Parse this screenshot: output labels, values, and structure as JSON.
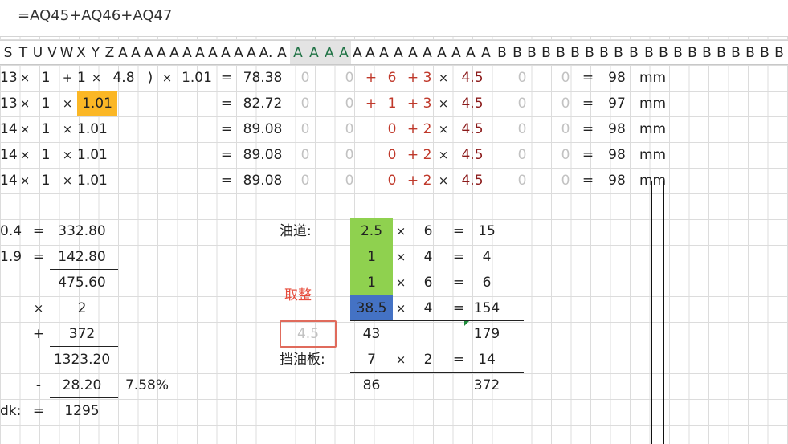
{
  "formula_bar": {
    "text": "=AQ45+AQ46+AQ47"
  },
  "columns": [
    {
      "label": "S",
      "w": 20,
      "sel": false
    },
    {
      "label": "T",
      "w": 18,
      "sel": false
    },
    {
      "label": "U",
      "w": 18,
      "sel": false
    },
    {
      "label": "V",
      "w": 18,
      "sel": false
    },
    {
      "label": "W",
      "w": 18,
      "sel": false
    },
    {
      "label": "X",
      "w": 18,
      "sel": false
    },
    {
      "label": "Y",
      "w": 18,
      "sel": false
    },
    {
      "label": "Z",
      "w": 17,
      "sel": false
    },
    {
      "label": "A",
      "w": 16,
      "sel": false
    },
    {
      "label": "A",
      "w": 16,
      "sel": false
    },
    {
      "label": "A",
      "w": 16,
      "sel": false
    },
    {
      "label": "A",
      "w": 16,
      "sel": false
    },
    {
      "label": "A",
      "w": 16,
      "sel": false
    },
    {
      "label": "A",
      "w": 16,
      "sel": false
    },
    {
      "label": "A",
      "w": 16,
      "sel": false
    },
    {
      "label": "A",
      "w": 16,
      "sel": false
    },
    {
      "label": "A",
      "w": 16,
      "sel": false
    },
    {
      "label": "A",
      "w": 16,
      "sel": false
    },
    {
      "label": "A",
      "w": 16,
      "sel": false
    },
    {
      "label": "A.",
      "w": 20,
      "sel": false
    },
    {
      "label": "A",
      "w": 20,
      "sel": false
    },
    {
      "label": "A",
      "w": 20,
      "sel": true
    },
    {
      "label": "A",
      "w": 20,
      "sel": true
    },
    {
      "label": "A",
      "w": 18,
      "sel": true
    },
    {
      "label": "A",
      "w": 18,
      "sel": true
    },
    {
      "label": "A",
      "w": 16,
      "sel": false
    },
    {
      "label": "A",
      "w": 16,
      "sel": false
    },
    {
      "label": "A",
      "w": 18,
      "sel": false
    },
    {
      "label": "A",
      "w": 18,
      "sel": false
    },
    {
      "label": "A",
      "w": 18,
      "sel": false
    },
    {
      "label": "A",
      "w": 18,
      "sel": false
    },
    {
      "label": "A",
      "w": 18,
      "sel": false
    },
    {
      "label": "A",
      "w": 18,
      "sel": false
    },
    {
      "label": "A",
      "w": 18,
      "sel": false
    },
    {
      "label": "A",
      "w": 20,
      "sel": false
    },
    {
      "label": "B",
      "w": 20,
      "sel": false
    },
    {
      "label": "B",
      "w": 18,
      "sel": false
    },
    {
      "label": "B",
      "w": 18,
      "sel": false
    },
    {
      "label": "B",
      "w": 18,
      "sel": false
    },
    {
      "label": "B",
      "w": 18,
      "sel": false
    },
    {
      "label": "B",
      "w": 18,
      "sel": false
    },
    {
      "label": "B",
      "w": 18,
      "sel": false
    },
    {
      "label": "B",
      "w": 18,
      "sel": false
    },
    {
      "label": "B",
      "w": 18,
      "sel": false
    },
    {
      "label": "B",
      "w": 20,
      "sel": false
    },
    {
      "label": "B",
      "w": 18,
      "sel": false
    },
    {
      "label": "B",
      "w": 18,
      "sel": false
    },
    {
      "label": "B",
      "w": 18,
      "sel": false
    },
    {
      "label": "B",
      "w": 18,
      "sel": false
    },
    {
      "label": "B",
      "w": 18,
      "sel": false
    },
    {
      "label": "B",
      "w": 18,
      "sel": false
    },
    {
      "label": "B",
      "w": 18,
      "sel": false
    },
    {
      "label": "B",
      "w": 18,
      "sel": false
    },
    {
      "label": "B",
      "w": 18,
      "sel": false
    },
    {
      "label": "B",
      "w": 18,
      "sel": false
    },
    {
      "label": "B",
      "w": 18,
      "sel": false
    },
    {
      "label": "B",
      "w": 18,
      "sel": false
    },
    {
      "label": "B",
      "w": 18,
      "sel": false
    }
  ],
  "top_rows": [
    {
      "s": "13",
      "times1": "×",
      "u": "1",
      "op2": "+",
      "w": "1",
      "times3": "×",
      "y": "4.8",
      "paren": ")",
      "times4": "×",
      "aa": "1.01",
      "eq": "=",
      "result": "78.38",
      "z1": "0",
      "z2": "0",
      "sign1": "+",
      "n1": "6",
      "sign2": "+",
      "n2": "3",
      "times5": "×",
      "n3": "4.5",
      "z3": "0",
      "z4": "0",
      "eq2": "=",
      "final": "98",
      "unit": "mm"
    },
    {
      "s": "13",
      "times1": "×",
      "u": "1",
      "op2": "×",
      "w": "1.01",
      "times3": "",
      "y": "",
      "paren": "",
      "times4": "",
      "aa": "",
      "eq": "=",
      "result": "82.72",
      "z1": "0",
      "z2": "0",
      "sign1": "+",
      "n1": "1",
      "sign2": "+",
      "n2": "3",
      "times5": "×",
      "n3": "4.5",
      "z3": "0",
      "z4": "0",
      "eq2": "=",
      "final": "97",
      "unit": "mm"
    },
    {
      "s": "14",
      "times1": "×",
      "u": "1",
      "op2": "×",
      "w": "1.01",
      "times3": "",
      "y": "",
      "paren": "",
      "times4": "",
      "aa": "",
      "eq": "=",
      "result": "89.08",
      "z1": "0",
      "z2": "0",
      "sign1": "",
      "n1": "0",
      "sign2": "+",
      "n2": "2",
      "times5": "×",
      "n3": "4.5",
      "z3": "0",
      "z4": "0",
      "eq2": "=",
      "final": "98",
      "unit": "mm"
    },
    {
      "s": "14",
      "times1": "×",
      "u": "1",
      "op2": "×",
      "w": "1.01",
      "times3": "",
      "y": "",
      "paren": "",
      "times4": "",
      "aa": "",
      "eq": "=",
      "result": "89.08",
      "z1": "0",
      "z2": "0",
      "sign1": "",
      "n1": "0",
      "sign2": "+",
      "n2": "2",
      "times5": "×",
      "n3": "4.5",
      "z3": "0",
      "z4": "0",
      "eq2": "=",
      "final": "98",
      "unit": "mm"
    },
    {
      "s": "14",
      "times1": "×",
      "u": "1",
      "op2": "×",
      "w": "1.01",
      "times3": "",
      "y": "",
      "paren": "",
      "times4": "",
      "aa": "",
      "eq": "=",
      "result": "89.08",
      "z1": "0",
      "z2": "0",
      "sign1": "",
      "n1": "0",
      "sign2": "+",
      "n2": "2",
      "times5": "×",
      "n3": "4.5",
      "z3": "0",
      "z4": "0",
      "eq2": "=",
      "final": "98",
      "unit": "mm"
    }
  ],
  "left_block": {
    "r1": {
      "a": "0.4",
      "eq": "=",
      "v": "332.80"
    },
    "r2": {
      "a": "1.9",
      "eq": "=",
      "v": "142.80"
    },
    "r3": {
      "v": "475.60"
    },
    "r4": {
      "op": "×",
      "v": "2"
    },
    "r5": {
      "op": "+",
      "v": "372"
    },
    "r6": {
      "v": "1323.20"
    },
    "r7": {
      "op": "-",
      "v": "28.20",
      "pct": "7.58%"
    },
    "r8": {
      "label": "dk:",
      "eq": "=",
      "v": "1295"
    }
  },
  "oil_block": {
    "label_oil": "油道:",
    "label_round": "取整",
    "label_baffle": "挡油板:",
    "rows": [
      {
        "a": "2.5",
        "op": "×",
        "b": "6",
        "eq": "=",
        "c": "15"
      },
      {
        "a": "1",
        "op": "×",
        "b": "4",
        "eq": "=",
        "c": "4"
      },
      {
        "a": "1",
        "op": "×",
        "b": "6",
        "eq": "=",
        "c": "6"
      },
      {
        "a": "38.5",
        "op": "×",
        "b": "4",
        "eq": "=",
        "c": "154"
      },
      {
        "pre": "4.5",
        "a": "43",
        "op": "",
        "b": "",
        "eq": "",
        "c": "179"
      },
      {
        "a": "7",
        "op": "×",
        "b": "2",
        "eq": "=",
        "c": "14"
      },
      {
        "a": "86",
        "op": "",
        "b": "",
        "eq": "",
        "c": "372"
      }
    ]
  },
  "colors": {
    "orange": "#fbb725",
    "green": "#8fd14f",
    "blue": "#4472c4",
    "red": "#c0392b"
  }
}
